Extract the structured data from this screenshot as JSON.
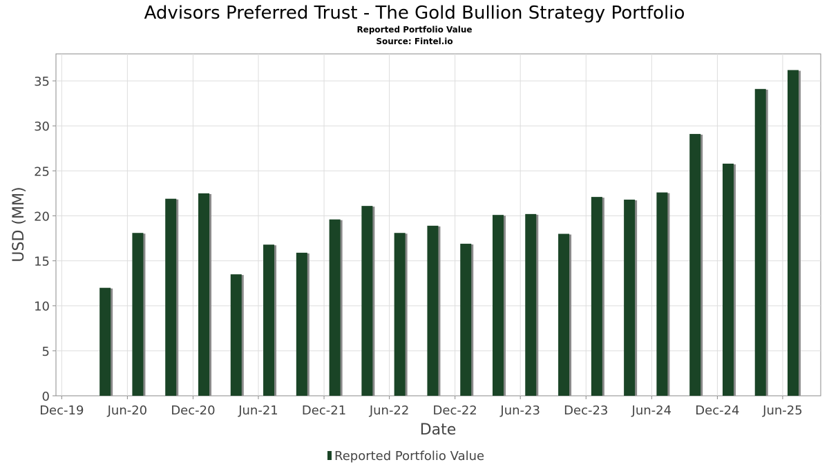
{
  "chart_data": {
    "type": "bar",
    "title": "Advisors Preferred Trust - The Gold Bullion Strategy Portfolio",
    "subtitle": "Reported Portfolio Value",
    "source": "Source: Fintel.io",
    "xlabel": "Date",
    "ylabel": "USD (MM)",
    "x_tick_labels": [
      "Dec-19",
      "Jun-20",
      "Dec-20",
      "Jun-21",
      "Dec-21",
      "Jun-22",
      "Dec-22",
      "Jun-23",
      "Dec-23",
      "Jun-24",
      "Dec-24",
      "Jun-25"
    ],
    "y_ticks": [
      0,
      5,
      10,
      15,
      20,
      25,
      30,
      35
    ],
    "ylim": [
      0,
      38
    ],
    "xlim": [
      "2019-11-15",
      "2025-09-15"
    ],
    "grid": true,
    "legend_position": "bottom-center",
    "series": [
      {
        "name": "Reported Portfolio Value",
        "color": "#1a4426",
        "points": [
          {
            "x": "2020-03-31",
            "y": 12.0
          },
          {
            "x": "2020-06-30",
            "y": 18.1
          },
          {
            "x": "2020-09-30",
            "y": 21.9
          },
          {
            "x": "2020-12-31",
            "y": 22.5
          },
          {
            "x": "2021-03-31",
            "y": 13.5
          },
          {
            "x": "2021-06-30",
            "y": 16.8
          },
          {
            "x": "2021-09-30",
            "y": 15.9
          },
          {
            "x": "2021-12-31",
            "y": 19.6
          },
          {
            "x": "2022-03-31",
            "y": 21.1
          },
          {
            "x": "2022-06-30",
            "y": 18.1
          },
          {
            "x": "2022-09-30",
            "y": 18.9
          },
          {
            "x": "2022-12-31",
            "y": 16.9
          },
          {
            "x": "2023-03-31",
            "y": 20.1
          },
          {
            "x": "2023-06-30",
            "y": 20.2
          },
          {
            "x": "2023-09-30",
            "y": 18.0
          },
          {
            "x": "2023-12-31",
            "y": 22.1
          },
          {
            "x": "2024-03-31",
            "y": 21.8
          },
          {
            "x": "2024-06-30",
            "y": 22.6
          },
          {
            "x": "2024-09-30",
            "y": 29.1
          },
          {
            "x": "2024-12-31",
            "y": 25.8
          },
          {
            "x": "2025-03-31",
            "y": 34.1
          },
          {
            "x": "2025-06-30",
            "y": 36.2
          }
        ]
      }
    ]
  }
}
